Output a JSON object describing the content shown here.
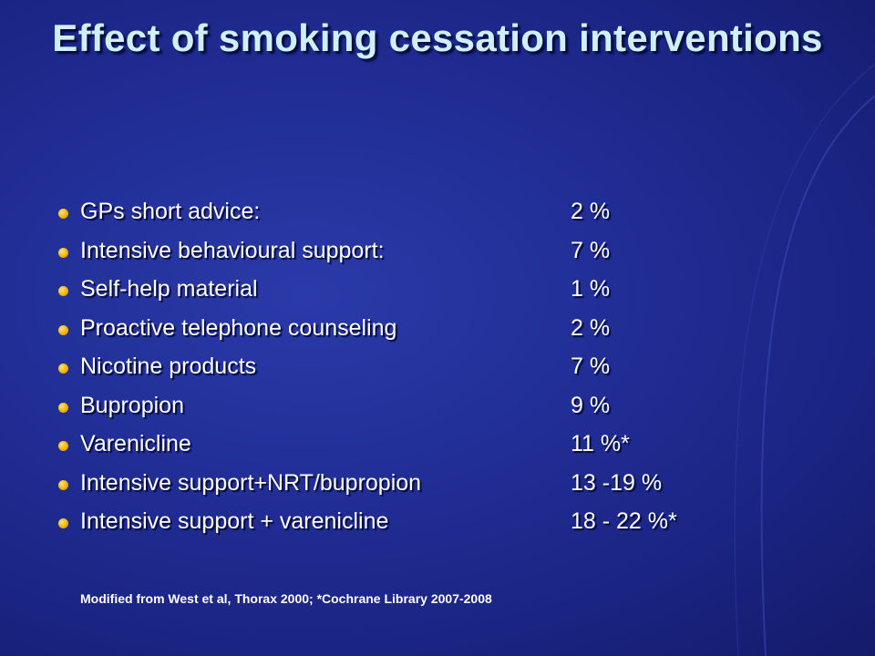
{
  "slide": {
    "title": "Effect of smoking cessation interventions",
    "items": [
      {
        "label": "GPs short advice:",
        "value": "2 %"
      },
      {
        "label": "Intensive behavioural support:",
        "value": "7 %"
      },
      {
        "label": "Self-help material",
        "value": "1 %"
      },
      {
        "label": "Proactive telephone counseling",
        "value": "2 %"
      },
      {
        "label": "Nicotine products",
        "value": "7 %"
      },
      {
        "label": "Bupropion",
        "value": "9 %"
      },
      {
        "label": "Varenicline",
        "value": "11 %*"
      },
      {
        "label": "Intensive support+NRT/bupropion",
        "value": "13 -19 %"
      },
      {
        "label": "Intensive support + varenicline",
        "value": "18 - 22 %*"
      }
    ],
    "footnote": "Modified from West et al, Thorax 2000; *Cochrane Library 2007-2008"
  },
  "colors": {
    "background": "#222f98",
    "title": "#cfeffc",
    "text": "#ffffff",
    "bullet": "#f4b400"
  }
}
